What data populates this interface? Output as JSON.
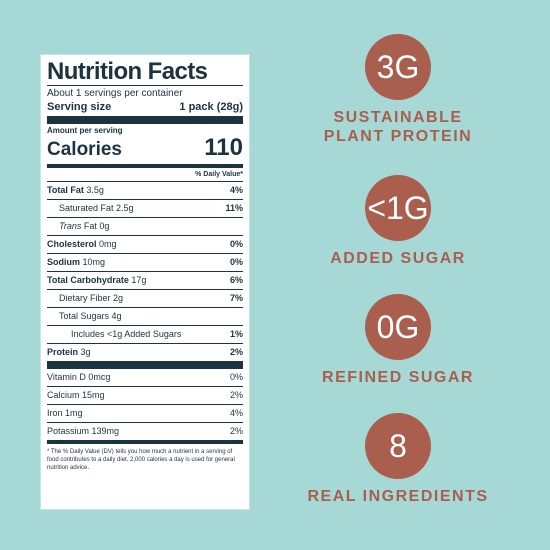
{
  "colors": {
    "background": "#a6d9d6",
    "accent": "#a95e4e",
    "label_ink": "#1c3340"
  },
  "label": {
    "title": "Nutrition Facts",
    "servings": "About 1 servings per container",
    "serving_size_label": "Serving size",
    "serving_size_value": "1 pack (28g)",
    "amount_per_serving": "Amount per serving",
    "calories_label": "Calories",
    "calories_value": "110",
    "dv_header": "% Daily Value*",
    "rows": [
      {
        "name": "Total Fat",
        "amount": "3.5g",
        "dv": "4%"
      },
      {
        "name": "Saturated Fat 2.5g",
        "dv": "11%"
      },
      {
        "name": "Trans",
        "amount": "Fat 0g",
        "dv": ""
      },
      {
        "name": "Cholesterol",
        "amount": "0mg",
        "dv": "0%"
      },
      {
        "name": "Sodium",
        "amount": "10mg",
        "dv": "0%"
      },
      {
        "name": "Total Carbohydrate",
        "amount": "17g",
        "dv": "6%"
      },
      {
        "name": "Dietary Fiber 2g",
        "dv": "7%"
      },
      {
        "name": "Total Sugars 4g",
        "dv": ""
      },
      {
        "name": "Includes <1g Added Sugars",
        "dv": "1%"
      },
      {
        "name": "Protein",
        "amount": "3g",
        "dv": "2%"
      }
    ],
    "vitamins": [
      {
        "name": "Vitamin D 0mcg",
        "dv": "0%"
      },
      {
        "name": "Calcium 15mg",
        "dv": "2%"
      },
      {
        "name": "Iron 1mg",
        "dv": "4%"
      },
      {
        "name": "Potassium 139mg",
        "dv": "2%"
      }
    ],
    "footnote": "* The % Daily Value (DV) tells you how much a nutrient in a serving of food contributes to a daily diet. 2,000 calories a day is used for general nutrition advice."
  },
  "badges": [
    {
      "value": "3G",
      "text": "SUSTAINABLE\nPLANT PROTEIN"
    },
    {
      "value": "<1G",
      "text": "ADDED SUGAR"
    },
    {
      "value": "0G",
      "text": "REFINED SUGAR"
    },
    {
      "value": "8",
      "text": "REAL INGREDIENTS"
    }
  ]
}
